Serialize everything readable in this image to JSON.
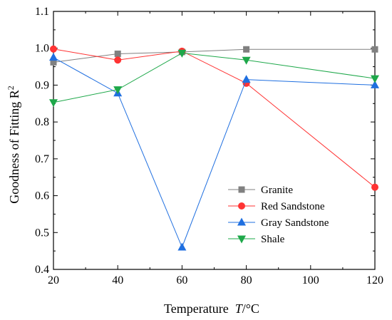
{
  "chart_data": {
    "type": "line",
    "xlabel": "Temperature  T/°C",
    "xlabel_parts": {
      "prefix": "Temperature  ",
      "var": "T",
      "unit": "/°C"
    },
    "ylabel": "Goodness of Fitting R²",
    "ylabel_parts": {
      "base": "Goodness of Fitting R",
      "sup": "2"
    },
    "xlim": [
      20,
      120
    ],
    "ylim": [
      0.4,
      1.1
    ],
    "xticks": [
      "20",
      "40",
      "60",
      "80",
      "100",
      "120"
    ],
    "yticks": [
      "0.4",
      "0.5",
      "0.6",
      "0.7",
      "0.8",
      "0.9",
      "1.0",
      "1.1"
    ],
    "grid": false,
    "legend_position": "bottom-right",
    "x": [
      20,
      40,
      60,
      80,
      120
    ],
    "series": [
      {
        "name": "Granite",
        "color": "#808080",
        "marker": "square",
        "values": [
          0.962,
          0.985,
          0.99,
          0.997,
          0.997
        ]
      },
      {
        "name": "Red Sandstone",
        "color": "#ff3333",
        "marker": "circle",
        "values": [
          0.998,
          0.968,
          0.992,
          0.905,
          0.623
        ]
      },
      {
        "name": "Gray Sandstone",
        "color": "#1f6fe0",
        "marker": "triangle-up",
        "values": [
          0.975,
          0.878,
          0.46,
          0.915,
          0.9
        ]
      },
      {
        "name": "Shale",
        "color": "#1ea84a",
        "marker": "triangle-down",
        "values": [
          0.853,
          0.888,
          0.987,
          0.968,
          0.918
        ]
      }
    ]
  }
}
